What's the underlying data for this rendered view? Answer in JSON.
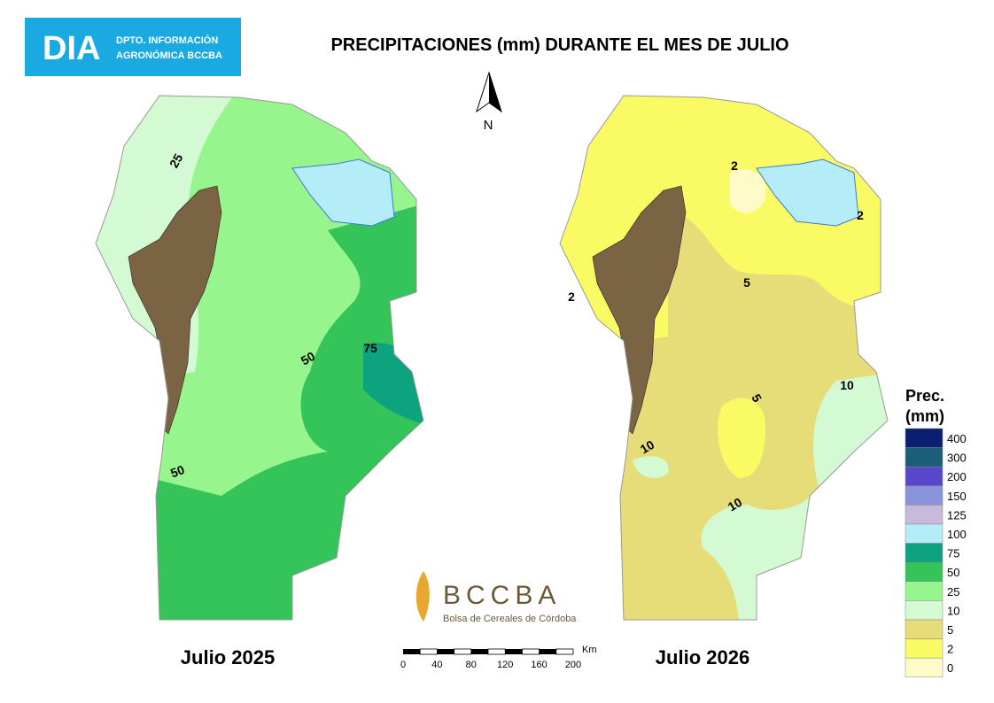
{
  "header": {
    "logo": "DIA",
    "department": [
      "DPTO. INFORMACIÓN",
      "AGRONÓMICA BCCBA"
    ]
  },
  "title": "PRECIPITACIONES (mm) DURANTE EL MES DE JULIO",
  "north_label": "N",
  "maps": [
    {
      "caption": "Julio 2025",
      "contour_labels": [
        "25",
        "50",
        "75",
        "50"
      ]
    },
    {
      "caption": "Julio 2026",
      "contour_labels": [
        "2",
        "2",
        "2",
        "5",
        "5",
        "10",
        "10",
        "10"
      ]
    }
  ],
  "scale_bar": {
    "unit": "Km",
    "ticks": [
      "0",
      "40",
      "80",
      "120",
      "160",
      "200"
    ]
  },
  "legend": {
    "title": [
      "Prec.",
      "(mm)"
    ],
    "items": [
      {
        "label": "400",
        "color": "#0b1f70"
      },
      {
        "label": "300",
        "color": "#1b5e78"
      },
      {
        "label": "200",
        "color": "#5a48cc"
      },
      {
        "label": "150",
        "color": "#8a94da"
      },
      {
        "label": "125",
        "color": "#c9badb"
      },
      {
        "label": "100",
        "color": "#b4edf7"
      },
      {
        "label": "75",
        "color": "#0ca37e"
      },
      {
        "label": "50",
        "color": "#34c45a"
      },
      {
        "label": "25",
        "color": "#96f58c"
      },
      {
        "label": "10",
        "color": "#d3fad3"
      },
      {
        "label": "5",
        "color": "#e6dc78"
      },
      {
        "label": "2",
        "color": "#fafa64"
      },
      {
        "label": "0",
        "color": "#fffbc8"
      }
    ]
  },
  "footer_logo": {
    "name": "BCCBA",
    "subtitle": "Bolsa de Cereales de Córdoba"
  }
}
